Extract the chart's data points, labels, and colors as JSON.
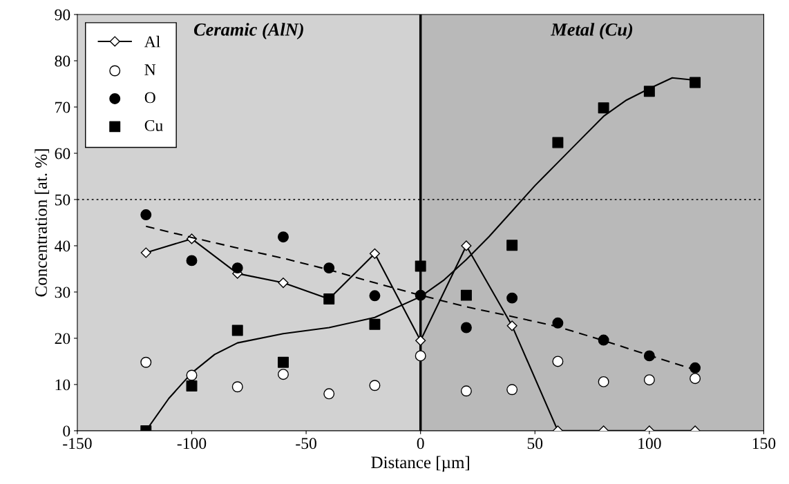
{
  "chart_data": {
    "type": "scatter",
    "xlabel": "Distance [µm]",
    "ylabel": "Concentration [at. %]",
    "xlim": [
      -150,
      150
    ],
    "xticks": [
      -150,
      -100,
      -50,
      0,
      50,
      100,
      150
    ],
    "ylim": [
      0,
      90
    ],
    "yticks": [
      0,
      10,
      20,
      30,
      40,
      50,
      60,
      70,
      80,
      90
    ],
    "x": [
      -120,
      -100,
      -80,
      -60,
      -40,
      -20,
      0,
      20,
      40,
      60,
      80,
      100,
      120
    ],
    "grid": false,
    "legend": "top left",
    "series": [
      {
        "name": "Al",
        "type": "line",
        "color": "#000000",
        "marker": "diamond",
        "line_style": "solid",
        "values": [
          38.5,
          41.5,
          34,
          32,
          28.5,
          38.3,
          19.5,
          40,
          22.7,
          0,
          0,
          0,
          0
        ]
      },
      {
        "name": "N",
        "color": "#ffffff",
        "marker": "circle",
        "values": [
          14.8,
          12,
          9.5,
          12.2,
          8,
          9.8,
          16.2,
          8.6,
          8.9,
          15,
          10.6,
          11,
          11.3
        ]
      },
      {
        "name": "O",
        "color": "#000000",
        "marker": "circle",
        "values": [
          46.7,
          36.8,
          35.2,
          41.9,
          35.2,
          29.2,
          29.3,
          22.3,
          28.7,
          23.3,
          19.6,
          16.2,
          13.6
        ]
      },
      {
        "name": "Cu",
        "color": "#000000",
        "marker": "square",
        "values": [
          0,
          9.7,
          21.7,
          14.8,
          28.5,
          23,
          35.6,
          29.3,
          40.1,
          62.3,
          69.8,
          73.4,
          75.3
        ]
      },
      {
        "type": "line",
        "color": "#000000",
        "marker": "none",
        "line_style": "dashed",
        "x": [
          -120,
          -100,
          -80,
          -60,
          -40,
          -20,
          0,
          20,
          40,
          60,
          80,
          100,
          120
        ],
        "values": [
          44.2,
          41.8,
          39.5,
          37.3,
          34.8,
          32,
          29.3,
          26.8,
          24.7,
          22.5,
          19.5,
          16.3,
          13.2
        ]
      },
      {
        "type": "line",
        "color": "#000000",
        "marker": "none",
        "line_style": "solid",
        "x": [
          -120,
          -110,
          -100,
          -90,
          -80,
          -60,
          -40,
          -20,
          0,
          10,
          20,
          30,
          40,
          50,
          60,
          70,
          80,
          90,
          100,
          110,
          120
        ],
        "values": [
          0,
          7,
          12.5,
          16.5,
          19,
          21,
          22.3,
          24.5,
          29,
          32.5,
          37,
          42,
          47.5,
          53,
          58,
          63,
          68,
          71.5,
          74,
          76.3,
          75.8
        ]
      }
    ],
    "bands": [
      {
        "axis": "x",
        "from": -150,
        "to": 0,
        "label": "Ceramic (AlN)",
        "color": "#d2d2d2"
      },
      {
        "axis": "x",
        "from": 0,
        "to": 150,
        "label": "Metal (Cu)",
        "color": "#b9b9b9"
      }
    ],
    "ref_lines": [
      {
        "axis": "x",
        "value": 0,
        "color": "#000000",
        "line_style": "solid"
      },
      {
        "axis": "y",
        "value": 50,
        "color": "#000000",
        "line_style": "dotted"
      }
    ]
  }
}
